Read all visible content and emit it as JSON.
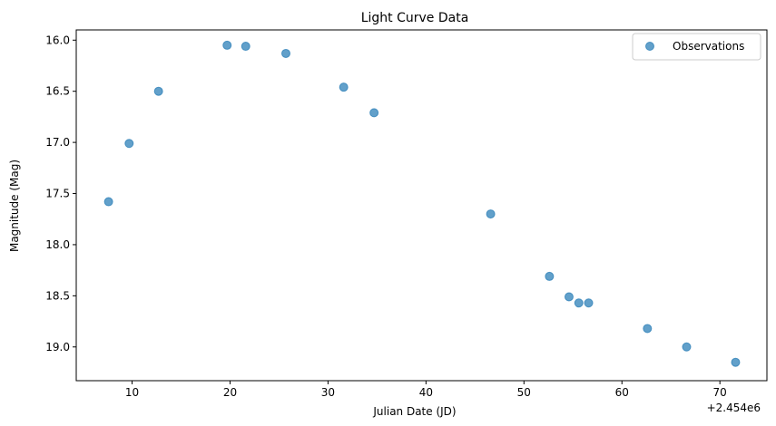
{
  "chart_data": {
    "type": "scatter",
    "title": "Light Curve Data",
    "xlabel": "Julian Date (JD)",
    "ylabel": "Magnitude (Mag)",
    "x_offset_label": "+2.454e6",
    "x_offset": 2454000,
    "xlim": [
      2454004.3,
      2454074.8
    ],
    "ylim": [
      19.33,
      15.9
    ],
    "y_inverted": true,
    "xticks": [
      2454010,
      2454020,
      2454030,
      2454040,
      2454050,
      2454060,
      2454070
    ],
    "xtick_labels": [
      "10",
      "20",
      "30",
      "40",
      "50",
      "60",
      "70"
    ],
    "yticks": [
      16.0,
      16.5,
      17.0,
      17.5,
      18.0,
      18.5,
      19.0
    ],
    "ytick_labels": [
      "16.0",
      "16.5",
      "17.0",
      "17.5",
      "18.0",
      "18.5",
      "19.0"
    ],
    "grid": false,
    "legend_position": "top-right",
    "series": [
      {
        "name": "Observations",
        "color": "#1f77b4",
        "x": [
          2454007.6,
          2454009.7,
          2454012.7,
          2454019.7,
          2454021.6,
          2454025.7,
          2454031.6,
          2454034.7,
          2454046.6,
          2454052.6,
          2454054.6,
          2454055.6,
          2454056.6,
          2454062.6,
          2454066.6,
          2454071.6
        ],
        "y": [
          17.58,
          17.01,
          16.5,
          16.05,
          16.06,
          16.13,
          16.46,
          16.71,
          17.7,
          18.31,
          18.51,
          18.57,
          18.57,
          18.82,
          19.0,
          19.15
        ]
      }
    ]
  }
}
